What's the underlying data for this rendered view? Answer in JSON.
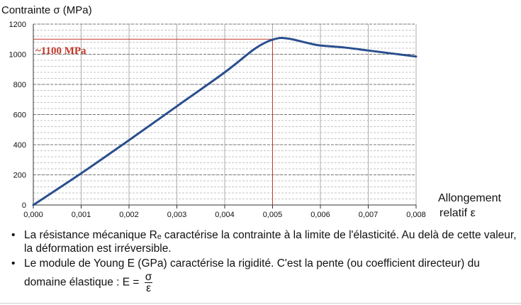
{
  "chart_data": {
    "type": "line",
    "ylabel": "Contrainte σ (MPa)",
    "xlabel_line1": "Allongement",
    "xlabel_line2": "relatif ε",
    "annotation": "~1100 MPa",
    "annotation_value": 1100,
    "annotation_x": 0.005,
    "xlim": [
      0,
      0.008
    ],
    "ylim": [
      0,
      1200
    ],
    "xticks": [
      "0,000",
      "0,001",
      "0,002",
      "0,003",
      "0,004",
      "0,005",
      "0,006",
      "0,007",
      "0,008"
    ],
    "yticks": [
      "0",
      "200",
      "400",
      "600",
      "800",
      "1000",
      "1200"
    ],
    "grid": true,
    "series": [
      {
        "x": [
          0,
          0.001,
          0.002,
          0.003,
          0.004,
          0.0046,
          0.0049,
          0.0051,
          0.0052,
          0.0054,
          0.0056,
          0.0058,
          0.006,
          0.0065,
          0.007,
          0.0075,
          0.008
        ],
        "y": [
          0,
          210,
          430,
          655,
          880,
          1030,
          1085,
          1105,
          1108,
          1100,
          1085,
          1070,
          1058,
          1045,
          1025,
          1005,
          985
        ]
      }
    ],
    "colors": {
      "line": "#2a4f8f",
      "annotation": "#c0392b",
      "grid": "#8a8a8a"
    }
  },
  "bullets": {
    "b1": "La résistance mécanique Rₑ caractérise la contrainte à la limite de l'élasticité. Au delà de cette valeur, la déformation est irréversible.",
    "b2": "Le module de Young E (GPa) caractérise la rigidité. C'est la pente (ou coefficient directeur) du",
    "b2_cont": "domaine élastique : E =",
    "frac_num": "σ",
    "frac_den": "ε"
  }
}
